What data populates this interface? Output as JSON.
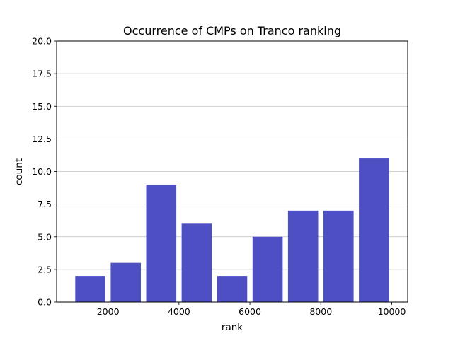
{
  "chart_data": {
    "type": "bar",
    "title": "Occurrence of CMPs on Tranco ranking",
    "xlabel": "rank",
    "ylabel": "count",
    "bins": [
      {
        "x_start": 1000,
        "x_end": 2000,
        "value": 2
      },
      {
        "x_start": 2000,
        "x_end": 3000,
        "value": 3
      },
      {
        "x_start": 3000,
        "x_end": 4000,
        "value": 9
      },
      {
        "x_start": 4000,
        "x_end": 5000,
        "value": 6
      },
      {
        "x_start": 5000,
        "x_end": 6000,
        "value": 2
      },
      {
        "x_start": 6000,
        "x_end": 7000,
        "value": 5
      },
      {
        "x_start": 7000,
        "x_end": 8000,
        "value": 7
      },
      {
        "x_start": 8000,
        "x_end": 9000,
        "value": 7
      },
      {
        "x_start": 9000,
        "x_end": 10000,
        "value": 11
      }
    ],
    "xlim": [
      550,
      10450
    ],
    "ylim": [
      0,
      20
    ],
    "xticks": [
      2000,
      4000,
      6000,
      8000,
      10000
    ],
    "xtick_labels": [
      "2000",
      "4000",
      "6000",
      "8000",
      "10000"
    ],
    "yticks": [
      0,
      2.5,
      5,
      7.5,
      10,
      12.5,
      15,
      17.5,
      20
    ],
    "ytick_labels": [
      "0.0",
      "2.5",
      "5.0",
      "7.5",
      "10.0",
      "12.5",
      "15.0",
      "17.5",
      "20.0"
    ],
    "grid": "horizontal",
    "bar_color": "#4f4fc4",
    "grid_color": "#c0c0c0"
  }
}
